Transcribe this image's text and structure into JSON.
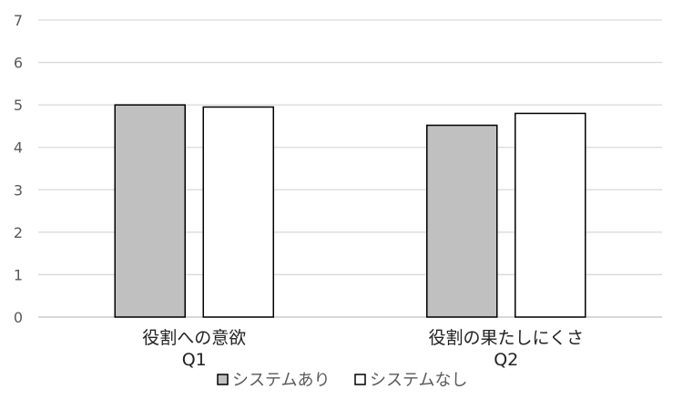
{
  "chart_data": {
    "type": "bar",
    "categories": [
      {
        "label": "役割への意欲",
        "sub": "Q1"
      },
      {
        "label": "役割の果たしにくさ",
        "sub": "Q2"
      }
    ],
    "series": [
      {
        "name": "システムあり",
        "color": "#c0c0c0",
        "values": [
          5.0,
          4.52
        ]
      },
      {
        "name": "システムなし",
        "color": "#ffffff",
        "values": [
          4.95,
          4.8
        ]
      }
    ],
    "ylim": [
      0,
      7
    ],
    "yticks": [
      "0",
      "1",
      "2",
      "3",
      "4",
      "5",
      "6",
      "7"
    ],
    "grid": true,
    "legend_position": "bottom",
    "title": "",
    "xlabel": "",
    "ylabel": ""
  }
}
